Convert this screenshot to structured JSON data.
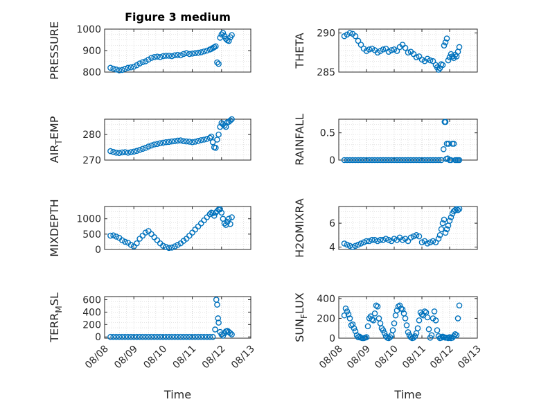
{
  "figure_title": "Figure 3 medium",
  "colors": {
    "marker": "#0072BD",
    "axis": "#262626",
    "grid": "#c8c8c8"
  },
  "chart_data": [
    {
      "type": "scatter",
      "title": "Figure 3 medium",
      "ylabel": "PRESSURE",
      "xlabel": "",
      "ylim": [
        800,
        1000
      ],
      "yticks": [
        "800",
        "900",
        "1000"
      ],
      "xticks": [],
      "grid": true,
      "x": [
        8.2,
        8.3,
        8.4,
        8.5,
        8.6,
        8.7,
        8.8,
        8.9,
        9.0,
        9.1,
        9.2,
        9.3,
        9.4,
        9.5,
        9.6,
        9.7,
        9.8,
        9.9,
        10.0,
        10.1,
        10.2,
        10.3,
        10.4,
        10.5,
        10.6,
        10.7,
        10.8,
        10.9,
        11.0,
        11.1,
        11.2,
        11.3,
        11.4,
        11.5,
        11.6,
        11.65,
        11.7,
        11.75,
        11.8,
        11.85,
        11.9,
        11.95,
        12.0,
        12.05,
        12.1,
        12.15,
        12.2,
        12.25,
        12.3,
        12.35
      ],
      "y": [
        820,
        816,
        812,
        808,
        810,
        815,
        820,
        822,
        825,
        832,
        840,
        846,
        850,
        858,
        866,
        870,
        872,
        870,
        874,
        876,
        876,
        874,
        878,
        880,
        878,
        884,
        888,
        884,
        886,
        888,
        890,
        892,
        896,
        900,
        905,
        908,
        912,
        916,
        920,
        845,
        838,
        960,
        975,
        982,
        968,
        955,
        948,
        945,
        962,
        972
      ]
    },
    {
      "type": "scatter",
      "ylabel": "THETA",
      "xlabel": "",
      "ylim": [
        285,
        290.5
      ],
      "yticks": [
        "285",
        "290"
      ],
      "xticks": [],
      "grid": true,
      "x": [
        8.2,
        8.3,
        8.4,
        8.5,
        8.6,
        8.7,
        8.8,
        8.9,
        9.0,
        9.1,
        9.2,
        9.3,
        9.4,
        9.5,
        9.6,
        9.7,
        9.8,
        9.9,
        10.0,
        10.1,
        10.2,
        10.3,
        10.4,
        10.5,
        10.6,
        10.7,
        10.8,
        10.9,
        11.0,
        11.1,
        11.2,
        11.3,
        11.4,
        11.5,
        11.55,
        11.6,
        11.65,
        11.7,
        11.75,
        11.8,
        11.85,
        11.9,
        11.95,
        12.0,
        12.05,
        12.1,
        12.15,
        12.2,
        12.25,
        12.3,
        12.35
      ],
      "y": [
        289.6,
        289.8,
        290.0,
        289.9,
        289.6,
        289.0,
        288.5,
        288.0,
        287.7,
        287.9,
        288.0,
        287.8,
        287.5,
        287.7,
        287.9,
        288.0,
        287.6,
        287.8,
        287.9,
        287.7,
        288.2,
        288.5,
        288.1,
        287.5,
        287.6,
        287.3,
        286.9,
        287.0,
        286.6,
        286.4,
        286.7,
        286.5,
        286.4,
        285.9,
        285.6,
        285.3,
        285.5,
        286.0,
        285.9,
        288.4,
        288.8,
        289.3,
        286.5,
        286.9,
        287.3,
        287.0,
        286.8,
        287.2,
        287.0,
        287.6,
        288.2
      ]
    },
    {
      "type": "scatter",
      "ylabel": "AIR_TEMP",
      "xlabel": "",
      "ylim": [
        270,
        286
      ],
      "yticks": [
        "270",
        "280"
      ],
      "xticks": [],
      "grid": true,
      "x": [
        8.2,
        8.3,
        8.4,
        8.5,
        8.6,
        8.7,
        8.8,
        8.9,
        9.0,
        9.1,
        9.2,
        9.3,
        9.4,
        9.5,
        9.6,
        9.7,
        9.8,
        9.9,
        10.0,
        10.1,
        10.2,
        10.3,
        10.4,
        10.5,
        10.6,
        10.7,
        10.8,
        10.9,
        11.0,
        11.1,
        11.2,
        11.3,
        11.4,
        11.5,
        11.6,
        11.65,
        11.7,
        11.75,
        11.8,
        11.85,
        11.9,
        11.95,
        12.0,
        12.05,
        12.1,
        12.15,
        12.2,
        12.25,
        12.3,
        12.35
      ],
      "y": [
        273.5,
        273.2,
        272.9,
        272.8,
        273.0,
        273.1,
        272.9,
        273.1,
        273.3,
        273.6,
        274.0,
        274.4,
        274.8,
        275.3,
        275.7,
        276.1,
        276.3,
        276.6,
        276.8,
        277.0,
        277.1,
        277.3,
        277.4,
        277.6,
        277.7,
        277.4,
        277.3,
        277.2,
        277.0,
        277.2,
        277.5,
        277.8,
        278.0,
        278.3,
        278.7,
        279.2,
        277.0,
        275.0,
        274.8,
        278.0,
        280.0,
        283.0,
        284.5,
        284.0,
        283.5,
        283.0,
        284.8,
        285.0,
        285.5,
        286.0
      ]
    },
    {
      "type": "scatter",
      "ylabel": "RAINFALL",
      "xlabel": "",
      "ylim": [
        0,
        0.75
      ],
      "yticks": [
        "0",
        "0.5"
      ],
      "xticks": [],
      "grid": true,
      "x": [
        8.2,
        8.3,
        8.4,
        8.5,
        8.6,
        8.7,
        8.8,
        8.9,
        9.0,
        9.1,
        9.2,
        9.3,
        9.4,
        9.5,
        9.6,
        9.7,
        9.8,
        9.9,
        10.0,
        10.1,
        10.2,
        10.3,
        10.4,
        10.5,
        10.6,
        10.7,
        10.8,
        10.9,
        11.0,
        11.1,
        11.2,
        11.3,
        11.4,
        11.5,
        11.6,
        11.7,
        11.78,
        11.82,
        11.85,
        11.88,
        11.9,
        11.93,
        11.96,
        12.0,
        12.05,
        12.1,
        12.15,
        12.2,
        12.25,
        12.3,
        12.35
      ],
      "y": [
        0,
        0,
        0,
        0,
        0,
        0,
        0,
        0,
        0,
        0,
        0,
        0,
        0,
        0,
        0,
        0,
        0,
        0,
        0,
        0,
        0,
        0,
        0,
        0,
        0,
        0,
        0,
        0,
        0,
        0,
        0,
        0,
        0,
        0,
        0,
        0,
        0.2,
        0.7,
        0.7,
        0.02,
        0.3,
        0.03,
        0.3,
        0,
        0,
        0.3,
        0.3,
        0,
        0,
        0,
        0
      ]
    },
    {
      "type": "scatter",
      "ylabel": "MIXDEPTH",
      "xlabel": "",
      "ylim": [
        0,
        1400
      ],
      "yticks": [
        "0",
        "500",
        "1000"
      ],
      "xticks": [],
      "grid": true,
      "x": [
        8.2,
        8.3,
        8.4,
        8.5,
        8.6,
        8.7,
        8.8,
        8.9,
        9.0,
        9.1,
        9.2,
        9.3,
        9.4,
        9.5,
        9.6,
        9.7,
        9.8,
        9.9,
        10.0,
        10.1,
        10.2,
        10.3,
        10.4,
        10.5,
        10.6,
        10.7,
        10.8,
        10.9,
        11.0,
        11.1,
        11.2,
        11.3,
        11.4,
        11.5,
        11.6,
        11.65,
        11.7,
        11.75,
        11.8,
        11.85,
        11.9,
        11.95,
        12.0,
        12.05,
        12.1,
        12.15,
        12.2,
        12.25,
        12.3,
        12.35
      ],
      "y": [
        450,
        460,
        420,
        380,
        300,
        250,
        220,
        150,
        100,
        200,
        350,
        450,
        550,
        600,
        500,
        400,
        300,
        200,
        120,
        80,
        50,
        60,
        100,
        150,
        200,
        280,
        350,
        450,
        550,
        650,
        750,
        850,
        950,
        1050,
        1150,
        1200,
        1180,
        1100,
        1200,
        1250,
        1300,
        1310,
        1200,
        1000,
        850,
        800,
        900,
        1000,
        830,
        1050
      ]
    },
    {
      "type": "scatter",
      "ylabel": "H2OMIXRA",
      "xlabel": "",
      "ylim": [
        3.8,
        7.4
      ],
      "yticks": [
        "4",
        "6"
      ],
      "xticks": [],
      "grid": true,
      "x": [
        8.2,
        8.3,
        8.4,
        8.5,
        8.6,
        8.7,
        8.8,
        8.9,
        9.0,
        9.1,
        9.2,
        9.3,
        9.4,
        9.5,
        9.6,
        9.7,
        9.8,
        9.9,
        10.0,
        10.1,
        10.2,
        10.3,
        10.4,
        10.5,
        10.6,
        10.7,
        10.8,
        10.9,
        11.0,
        11.1,
        11.2,
        11.3,
        11.4,
        11.5,
        11.6,
        11.65,
        11.7,
        11.75,
        11.8,
        11.85,
        11.9,
        11.95,
        12.0,
        12.05,
        12.1,
        12.15,
        12.2,
        12.25,
        12.3,
        12.35
      ],
      "y": [
        4.3,
        4.2,
        4.1,
        4.0,
        4.1,
        4.2,
        4.3,
        4.4,
        4.5,
        4.5,
        4.6,
        4.6,
        4.5,
        4.6,
        4.6,
        4.7,
        4.6,
        4.5,
        4.7,
        4.6,
        4.8,
        4.6,
        4.7,
        4.5,
        4.8,
        4.9,
        5.0,
        4.9,
        4.4,
        4.5,
        4.3,
        4.4,
        4.5,
        4.4,
        4.7,
        5.0,
        5.5,
        6.0,
        6.3,
        5.2,
        5.5,
        5.8,
        6.2,
        6.5,
        6.8,
        7.0,
        7.1,
        7.2,
        7.1,
        7.2
      ]
    },
    {
      "type": "scatter",
      "ylabel": "TERR_MSL",
      "xlabel": "Time",
      "ylim": [
        -20,
        650
      ],
      "yticks": [
        "0",
        "200",
        "400",
        "600"
      ],
      "xticks": [
        "08/08",
        "08/09",
        "08/10",
        "08/11",
        "08/12",
        "08/13"
      ],
      "grid": true,
      "x": [
        8.2,
        8.3,
        8.4,
        8.5,
        8.6,
        8.7,
        8.8,
        8.9,
        9.0,
        9.1,
        9.2,
        9.3,
        9.4,
        9.5,
        9.6,
        9.7,
        9.8,
        9.9,
        10.0,
        10.1,
        10.2,
        10.3,
        10.4,
        10.5,
        10.6,
        10.7,
        10.8,
        10.9,
        11.0,
        11.1,
        11.2,
        11.3,
        11.4,
        11.5,
        11.6,
        11.7,
        11.78,
        11.82,
        11.85,
        11.88,
        11.9,
        11.95,
        12.0,
        12.05,
        12.1,
        12.15,
        12.2,
        12.25,
        12.3,
        12.35
      ],
      "y": [
        0,
        0,
        0,
        0,
        0,
        0,
        0,
        0,
        0,
        0,
        0,
        0,
        0,
        0,
        0,
        0,
        0,
        0,
        0,
        0,
        0,
        0,
        0,
        0,
        0,
        0,
        0,
        0,
        0,
        0,
        0,
        0,
        0,
        0,
        0,
        0,
        120,
        600,
        520,
        300,
        230,
        80,
        40,
        20,
        60,
        90,
        100,
        80,
        60,
        40
      ]
    },
    {
      "type": "scatter",
      "ylabel": "SUN_FLUX",
      "xlabel": "Time",
      "ylim": [
        0,
        420
      ],
      "yticks": [
        "0",
        "200",
        "400"
      ],
      "xticks": [
        "08/08",
        "08/09",
        "08/10",
        "08/11",
        "08/12",
        "08/13"
      ],
      "grid": true,
      "x": [
        8.2,
        8.25,
        8.3,
        8.35,
        8.4,
        8.45,
        8.5,
        8.55,
        8.6,
        8.65,
        8.7,
        8.75,
        8.8,
        8.85,
        8.9,
        8.95,
        9.0,
        9.05,
        9.1,
        9.15,
        9.2,
        9.25,
        9.3,
        9.35,
        9.4,
        9.45,
        9.5,
        9.55,
        9.6,
        9.65,
        9.7,
        9.75,
        9.8,
        9.85,
        9.9,
        9.95,
        10.0,
        10.05,
        10.1,
        10.15,
        10.2,
        10.25,
        10.3,
        10.35,
        10.4,
        10.45,
        10.5,
        10.55,
        10.6,
        10.65,
        10.7,
        10.75,
        10.8,
        10.85,
        10.9,
        10.95,
        11.0,
        11.05,
        11.1,
        11.15,
        11.2,
        11.25,
        11.3,
        11.35,
        11.4,
        11.45,
        11.5,
        11.55,
        11.6,
        11.65,
        11.7,
        11.75,
        11.8,
        11.85,
        11.9,
        11.95,
        12.0,
        12.05,
        12.1,
        12.15,
        12.2,
        12.25,
        12.3,
        12.35
      ],
      "y": [
        230,
        300,
        270,
        240,
        200,
        130,
        140,
        100,
        70,
        30,
        10,
        15,
        5,
        0,
        0,
        5,
        10,
        120,
        200,
        220,
        190,
        180,
        250,
        330,
        320,
        200,
        150,
        100,
        80,
        50,
        20,
        5,
        0,
        10,
        30,
        80,
        150,
        230,
        280,
        320,
        330,
        300,
        290,
        250,
        200,
        130,
        60,
        30,
        10,
        0,
        5,
        20,
        50,
        100,
        180,
        260,
        240,
        230,
        270,
        260,
        210,
        90,
        5,
        30,
        200,
        270,
        180,
        80,
        20,
        0,
        5,
        15,
        10,
        5,
        5,
        0,
        10,
        0,
        5,
        20,
        40,
        30,
        200,
        330
      ]
    }
  ]
}
